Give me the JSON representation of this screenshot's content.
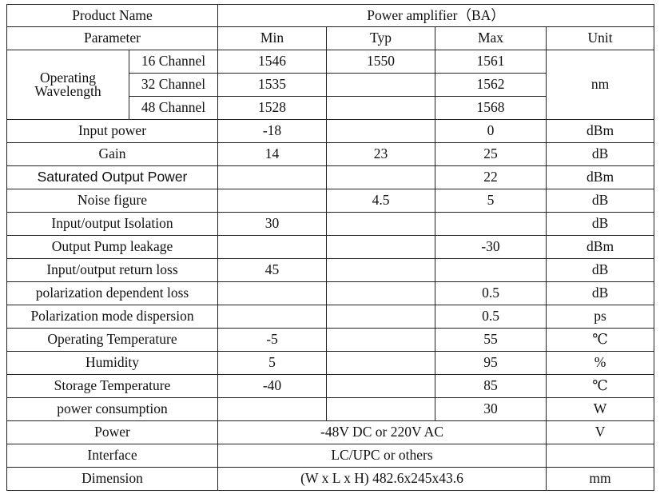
{
  "header": {
    "product_name_label": "Product Name",
    "product_name_value": "Power amplifier（BA）",
    "parameter_label": "Parameter",
    "min_label": "Min",
    "typ_label": "Typ",
    "max_label": "Max",
    "unit_label": "Unit"
  },
  "wavelength": {
    "label_line1": "Operating",
    "label_line2": "Wavelength",
    "unit": "nm",
    "rows": [
      {
        "channel": "16 Channel",
        "min": "1546",
        "typ": "1550",
        "max": "1561"
      },
      {
        "channel": "32 Channel",
        "min": "1535",
        "typ": "",
        "max": "1562"
      },
      {
        "channel": "48 Channel",
        "min": "1528",
        "typ": "",
        "max": "1568"
      }
    ]
  },
  "rows": [
    {
      "param": "Input power",
      "min": "-18",
      "typ": "",
      "max": "0",
      "unit": "dBm"
    },
    {
      "param": "Gain",
      "min": "14",
      "typ": "23",
      "max": "25",
      "unit": "dB"
    },
    {
      "param": "Saturated Output Power",
      "min": "",
      "typ": "",
      "max": "22",
      "unit": "dBm"
    },
    {
      "param": "Noise figure",
      "min": "",
      "typ": "4.5",
      "max": "5",
      "unit": "dB"
    },
    {
      "param": "Input/output Isolation",
      "min": "30",
      "typ": "",
      "max": "",
      "unit": "dB"
    },
    {
      "param": "Output Pump leakage",
      "min": "",
      "typ": "",
      "max": "-30",
      "unit": "dBm"
    },
    {
      "param": "Input/output return loss",
      "min": "45",
      "typ": "",
      "max": "",
      "unit": "dB"
    },
    {
      "param": "polarization dependent loss",
      "min": "",
      "typ": "",
      "max": "0.5",
      "unit": "dB"
    },
    {
      "param": "Polarization mode dispersion",
      "min": "",
      "typ": "",
      "max": "0.5",
      "unit": "ps"
    },
    {
      "param": "Operating Temperature",
      "min": "-5",
      "typ": "",
      "max": "55",
      "unit": "℃"
    },
    {
      "param": "Humidity",
      "min": "5",
      "typ": "",
      "max": "95",
      "unit": "%"
    },
    {
      "param": "Storage Temperature",
      "min": "-40",
      "typ": "",
      "max": "85",
      "unit": "℃"
    },
    {
      "param": "power consumption",
      "min": "",
      "typ": "",
      "max": "30",
      "unit": "W"
    }
  ],
  "power": {
    "param": "Power",
    "value": "-48V DC or 220V AC",
    "unit": "V"
  },
  "interface": {
    "param": "Interface",
    "value": "LC/UPC or others",
    "unit": ""
  },
  "dimension": {
    "param": "Dimension",
    "value": "(W x L x H)  482.6x245x43.6",
    "unit": "mm"
  }
}
